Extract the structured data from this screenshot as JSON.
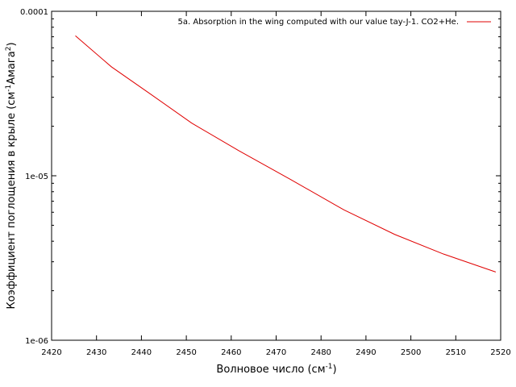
{
  "chart_data": {
    "type": "line",
    "title": "",
    "xlabel": {
      "main": "Волновое число (см",
      "sup": "-1",
      "tail": ")"
    },
    "ylabel": {
      "part1": "Коэффициент поглощения в крыле (см",
      "sup1": "-1",
      "part2": "Амага",
      "sup2": "2",
      "part3": ")"
    },
    "xlim": [
      2420,
      2520
    ],
    "ylim": [
      1e-06,
      0.0001
    ],
    "yscale": "log",
    "grid": false,
    "legend_position": "top-right",
    "x_ticks": [
      2420,
      2430,
      2440,
      2450,
      2460,
      2470,
      2480,
      2490,
      2500,
      2510,
      2520
    ],
    "x_tick_labels": [
      "2420",
      "2430",
      "2440",
      "2450",
      "2460",
      "2470",
      "2480",
      "2490",
      "2500",
      "2510",
      "2520"
    ],
    "y_ticks": [
      1e-06,
      1e-05,
      0.0001
    ],
    "y_tick_labels": [
      "1e-06",
      "1e-05",
      "0.0001"
    ],
    "series": [
      {
        "name": "5a. Absorption in the wing computed with our value tay-J-1. CO2+He.",
        "color": "#e00000",
        "x": [
          2425.3,
          2433.3,
          2441.8,
          2451.2,
          2461.7,
          2473.2,
          2485.1,
          2496.4,
          2507.3,
          2518.9
        ],
        "y": [
          7.1e-05,
          4.6e-05,
          3.17e-05,
          2.09e-05,
          1.42e-05,
          9.5e-06,
          6.2e-06,
          4.4e-06,
          3.34e-06,
          2.6e-06
        ]
      }
    ]
  }
}
